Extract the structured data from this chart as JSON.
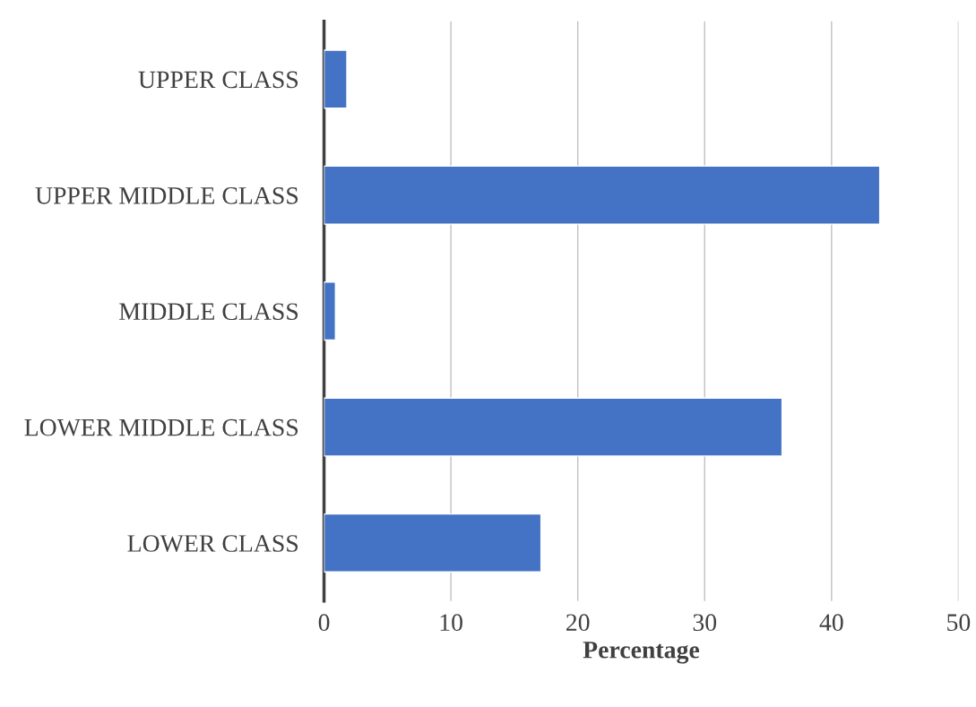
{
  "chart_data": {
    "type": "bar",
    "orientation": "horizontal",
    "xlabel": "Percentage",
    "categories": [
      "UPPER CLASS",
      "UPPER MIDDLE CLASS",
      "MIDDLE CLASS",
      "LOWER MIDDLE CLASS",
      "LOWER CLASS"
    ],
    "values": [
      1.8,
      43.8,
      0.9,
      36.1,
      17.1
    ],
    "color": "#4472c4",
    "xlim": [
      0,
      50
    ],
    "xticks": [
      0,
      10,
      20,
      30,
      40,
      50
    ],
    "grid": "x",
    "legend": false
  }
}
